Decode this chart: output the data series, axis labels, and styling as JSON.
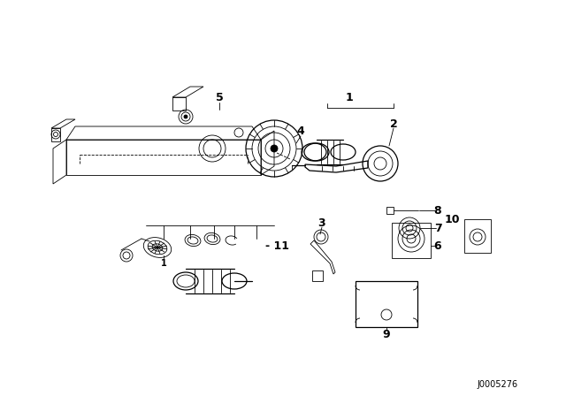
{
  "bg_color": "#ffffff",
  "line_color": "#000000",
  "watermark": "J0005276",
  "lw_thin": 0.6,
  "lw_med": 0.9,
  "lw_thick": 1.3
}
